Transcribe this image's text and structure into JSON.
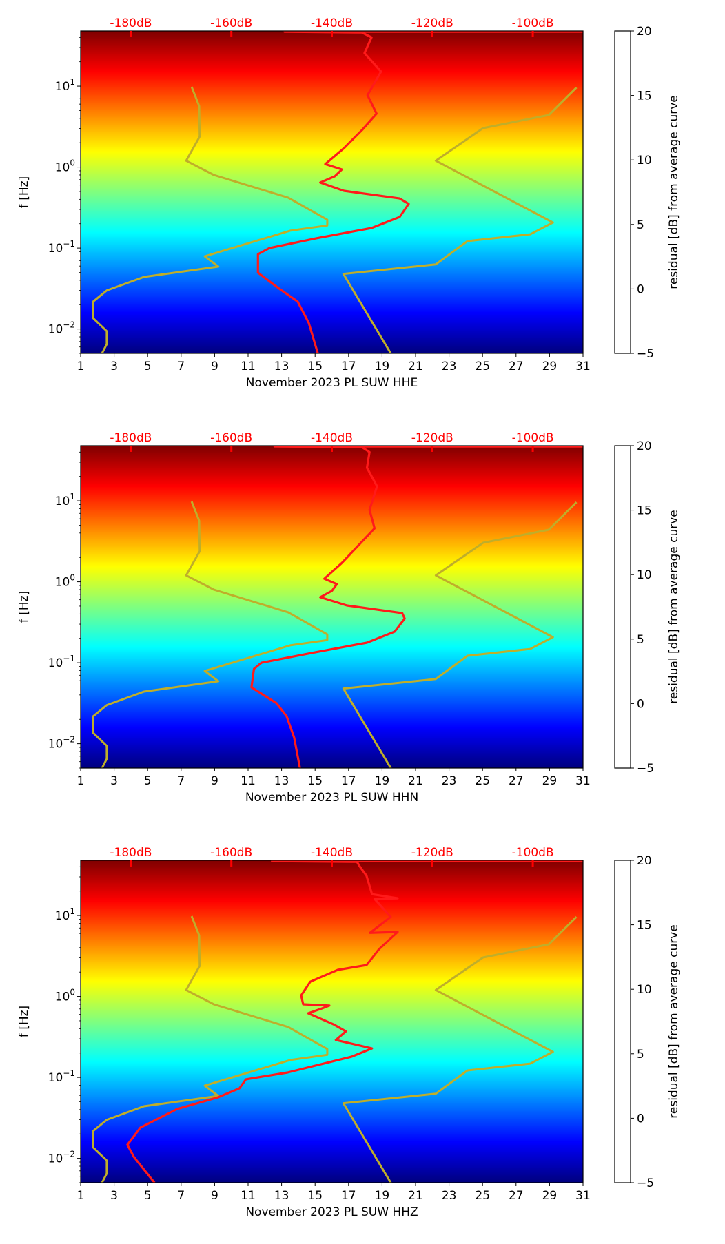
{
  "chart_data": [
    {
      "type": "heatmap",
      "title": "",
      "xlabel": "November 2023 PL SUW  HHE",
      "ylabel": "f [Hz]",
      "colorbar_label": "residual [dB] from average curve",
      "xlim": [
        1,
        31
      ],
      "ylim": [
        0.005,
        48
      ],
      "yscale": "log",
      "x_ticks": [
        "1",
        "3",
        "5",
        "7",
        "9",
        "11",
        "13",
        "15",
        "17",
        "19",
        "21",
        "23",
        "25",
        "27",
        "29",
        "31"
      ],
      "y_ticks": [
        {
          "value": 10,
          "base": "10",
          "exp": "1"
        },
        {
          "value": 1,
          "base": "10",
          "exp": "0"
        },
        {
          "value": 0.1,
          "base": "10",
          "exp": "−1"
        },
        {
          "value": 0.01,
          "base": "10",
          "exp": "−2"
        }
      ],
      "colorbar_ticks": [
        "20",
        "15",
        "10",
        "5",
        "0",
        "−5"
      ],
      "colorbar_range": [
        -5,
        20
      ],
      "colormap": "jet",
      "top_axis": {
        "ticks": [
          "-180dB",
          "-160dB",
          "-140dB",
          "-120dB",
          "-100dB"
        ],
        "values": [
          -180,
          -160,
          -140,
          -120,
          -100
        ],
        "range": [
          -190,
          -90
        ],
        "color": "#ff0000"
      },
      "series": [
        {
          "name": "NLNM",
          "color": "#bfae2a",
          "points": [
            [
              9.8,
              -167.9
            ],
            [
              5.66,
              -166.4
            ],
            [
              2.39,
              -166.3
            ],
            [
              1.2,
              -169.0
            ],
            [
              0.8,
              -163.5
            ],
            [
              0.42,
              -148.7
            ],
            [
              0.224,
              -140.9
            ],
            [
              0.19,
              -140.9
            ],
            [
              0.164,
              -148.3
            ],
            [
              0.079,
              -165.3
            ],
            [
              0.059,
              -162.6
            ],
            [
              0.044,
              -177.4
            ],
            [
              0.03,
              -184.8
            ],
            [
              0.0218,
              -187.5
            ],
            [
              0.0136,
              -187.5
            ],
            [
              0.0094,
              -184.8
            ],
            [
              0.0065,
              -184.8
            ],
            [
              0.0048,
              -185.9
            ]
          ]
        },
        {
          "name": "NHNM",
          "color": "#bfae2a",
          "points": [
            [
              9.6,
              -91.3
            ],
            [
              4.4,
              -96.8
            ],
            [
              3.03,
              -109.9
            ],
            [
              1.2,
              -119.3
            ],
            [
              0.207,
              -96.0
            ],
            [
              0.148,
              -100.5
            ],
            [
              0.122,
              -113.0
            ],
            [
              0.063,
              -119.3
            ],
            [
              0.048,
              -137.7
            ],
            [
              0.0048,
              -128.1
            ]
          ]
        },
        {
          "name": "median PSD",
          "color": "#ff1a1a",
          "points": [
            [
              47,
              -90
            ],
            [
              47,
              -149.4
            ],
            [
              46,
              -134
            ],
            [
              40,
              -132.1
            ],
            [
              25.6,
              -133.5
            ],
            [
              15.1,
              -130.2
            ],
            [
              7.74,
              -132.9
            ],
            [
              4.57,
              -131.1
            ],
            [
              2.91,
              -133.9
            ],
            [
              1.71,
              -137.6
            ],
            [
              1.09,
              -141.3
            ],
            [
              0.935,
              -138.0
            ],
            [
              0.77,
              -139.4
            ],
            [
              0.644,
              -142.3
            ],
            [
              0.509,
              -137.6
            ],
            [
              0.41,
              -126.5
            ],
            [
              0.351,
              -124.7
            ],
            [
              0.242,
              -126.5
            ],
            [
              0.177,
              -132.1
            ],
            [
              0.132,
              -143.1
            ],
            [
              0.1,
              -152.4
            ],
            [
              0.084,
              -154.7
            ],
            [
              0.0496,
              -154.7
            ],
            [
              0.0316,
              -150.5
            ],
            [
              0.0218,
              -146.8
            ],
            [
              0.0119,
              -144.6
            ],
            [
              0.0048,
              -142.7
            ]
          ]
        }
      ]
    },
    {
      "type": "heatmap",
      "title": "",
      "xlabel": "November 2023 PL SUW  HHN",
      "ylabel": "f [Hz]",
      "colorbar_label": "residual [dB] from average curve",
      "xlim": [
        1,
        31
      ],
      "ylim": [
        0.005,
        48
      ],
      "yscale": "log",
      "x_ticks": [
        "1",
        "3",
        "5",
        "7",
        "9",
        "11",
        "13",
        "15",
        "17",
        "19",
        "21",
        "23",
        "25",
        "27",
        "29",
        "31"
      ],
      "y_ticks": [
        {
          "value": 10,
          "base": "10",
          "exp": "1"
        },
        {
          "value": 1,
          "base": "10",
          "exp": "0"
        },
        {
          "value": 0.1,
          "base": "10",
          "exp": "−1"
        },
        {
          "value": 0.01,
          "base": "10",
          "exp": "−2"
        }
      ],
      "colorbar_ticks": [
        "20",
        "15",
        "10",
        "5",
        "0",
        "−5"
      ],
      "colorbar_range": [
        -5,
        20
      ],
      "colormap": "jet",
      "top_axis": {
        "ticks": [
          "-180dB",
          "-160dB",
          "-140dB",
          "-120dB",
          "-100dB"
        ],
        "values": [
          -180,
          -160,
          -140,
          -120,
          -100
        ],
        "range": [
          -190,
          -90
        ],
        "color": "#ff0000"
      },
      "series": [
        {
          "name": "NLNM",
          "color": "#bfae2a",
          "points": [
            [
              9.8,
              -167.9
            ],
            [
              5.66,
              -166.4
            ],
            [
              2.39,
              -166.3
            ],
            [
              1.2,
              -169.0
            ],
            [
              0.8,
              -163.5
            ],
            [
              0.42,
              -148.7
            ],
            [
              0.224,
              -140.9
            ],
            [
              0.19,
              -140.9
            ],
            [
              0.164,
              -148.3
            ],
            [
              0.079,
              -165.3
            ],
            [
              0.059,
              -162.6
            ],
            [
              0.044,
              -177.4
            ],
            [
              0.03,
              -184.8
            ],
            [
              0.0218,
              -187.5
            ],
            [
              0.0136,
              -187.5
            ],
            [
              0.0094,
              -184.8
            ],
            [
              0.0065,
              -184.8
            ],
            [
              0.0048,
              -185.9
            ]
          ]
        },
        {
          "name": "NHNM",
          "color": "#bfae2a",
          "points": [
            [
              9.6,
              -91.3
            ],
            [
              4.4,
              -96.8
            ],
            [
              3.03,
              -109.9
            ],
            [
              1.2,
              -119.3
            ],
            [
              0.207,
              -96.0
            ],
            [
              0.148,
              -100.5
            ],
            [
              0.122,
              -113.0
            ],
            [
              0.063,
              -119.3
            ],
            [
              0.048,
              -137.7
            ],
            [
              0.0048,
              -128.1
            ]
          ]
        },
        {
          "name": "median PSD",
          "color": "#ff1a1a",
          "points": [
            [
              47,
              -90
            ],
            [
              47,
              -151.4
            ],
            [
              46,
              -134
            ],
            [
              40,
              -132.5
            ],
            [
              25.6,
              -133.0
            ],
            [
              15.1,
              -131.0
            ],
            [
              7.74,
              -132.5
            ],
            [
              4.57,
              -131.5
            ],
            [
              2.91,
              -134.5
            ],
            [
              1.71,
              -138.0
            ],
            [
              1.09,
              -141.5
            ],
            [
              0.935,
              -139.0
            ],
            [
              0.77,
              -140.0
            ],
            [
              0.644,
              -142.3
            ],
            [
              0.509,
              -137.0
            ],
            [
              0.41,
              -126.0
            ],
            [
              0.351,
              -125.5
            ],
            [
              0.242,
              -127.5
            ],
            [
              0.177,
              -133.0
            ],
            [
              0.132,
              -144.0
            ],
            [
              0.1,
              -154.0
            ],
            [
              0.084,
              -155.5
            ],
            [
              0.0496,
              -156.0
            ],
            [
              0.0316,
              -151.0
            ],
            [
              0.0218,
              -149.0
            ],
            [
              0.0119,
              -147.5
            ],
            [
              0.0048,
              -146.3
            ]
          ]
        }
      ]
    },
    {
      "type": "heatmap",
      "title": "",
      "xlabel": "November 2023 PL SUW  HHZ",
      "ylabel": "f [Hz]",
      "colorbar_label": "residual [dB] from average curve",
      "xlim": [
        1,
        31
      ],
      "ylim": [
        0.005,
        48
      ],
      "yscale": "log",
      "x_ticks": [
        "1",
        "3",
        "5",
        "7",
        "9",
        "11",
        "13",
        "15",
        "17",
        "19",
        "21",
        "23",
        "25",
        "27",
        "29",
        "31"
      ],
      "y_ticks": [
        {
          "value": 10,
          "base": "10",
          "exp": "1"
        },
        {
          "value": 1,
          "base": "10",
          "exp": "0"
        },
        {
          "value": 0.1,
          "base": "10",
          "exp": "−1"
        },
        {
          "value": 0.01,
          "base": "10",
          "exp": "−2"
        }
      ],
      "colorbar_ticks": [
        "20",
        "15",
        "10",
        "5",
        "0",
        "−5"
      ],
      "colorbar_range": [
        -5,
        20
      ],
      "colormap": "jet",
      "top_axis": {
        "ticks": [
          "-180dB",
          "-160dB",
          "-140dB",
          "-120dB",
          "-100dB"
        ],
        "values": [
          -180,
          -160,
          -140,
          -120,
          -100
        ],
        "range": [
          -190,
          -90
        ],
        "color": "#ff0000"
      },
      "series": [
        {
          "name": "NLNM",
          "color": "#bfae2a",
          "points": [
            [
              9.8,
              -167.9
            ],
            [
              5.66,
              -166.4
            ],
            [
              2.39,
              -166.3
            ],
            [
              1.2,
              -169.0
            ],
            [
              0.8,
              -163.5
            ],
            [
              0.42,
              -148.7
            ],
            [
              0.224,
              -140.9
            ],
            [
              0.19,
              -140.9
            ],
            [
              0.164,
              -148.3
            ],
            [
              0.079,
              -165.3
            ],
            [
              0.059,
              -162.6
            ],
            [
              0.044,
              -177.4
            ],
            [
              0.03,
              -184.8
            ],
            [
              0.0218,
              -187.5
            ],
            [
              0.0136,
              -187.5
            ],
            [
              0.0094,
              -184.8
            ],
            [
              0.0065,
              -184.8
            ],
            [
              0.0048,
              -185.9
            ]
          ]
        },
        {
          "name": "NHNM",
          "color": "#bfae2a",
          "points": [
            [
              9.6,
              -91.3
            ],
            [
              4.4,
              -96.8
            ],
            [
              3.03,
              -109.9
            ],
            [
              1.2,
              -119.3
            ],
            [
              0.207,
              -96.0
            ],
            [
              0.148,
              -100.5
            ],
            [
              0.122,
              -113.0
            ],
            [
              0.063,
              -119.3
            ],
            [
              0.048,
              -137.7
            ],
            [
              0.0048,
              -128.1
            ]
          ]
        },
        {
          "name": "median PSD",
          "color": "#ff1a1a",
          "points": [
            [
              47,
              -90
            ],
            [
              47,
              -151.9
            ],
            [
              46,
              -135
            ],
            [
              40,
              -134.4
            ],
            [
              31,
              -133.1
            ],
            [
              18.3,
              -132.0
            ],
            [
              16.3,
              -126.9
            ],
            [
              16.0,
              -131.5
            ],
            [
              9.6,
              -128.3
            ],
            [
              6.1,
              -132.4
            ],
            [
              6.25,
              -126.9
            ],
            [
              3.83,
              -130.6
            ],
            [
              2.44,
              -133.1
            ],
            [
              2.13,
              -138.8
            ],
            [
              1.52,
              -144.3
            ],
            [
              1.03,
              -146.1
            ],
            [
              0.8,
              -145.7
            ],
            [
              0.77,
              -140.5
            ],
            [
              0.71,
              -142.0
            ],
            [
              0.62,
              -144.7
            ],
            [
              0.45,
              -139.6
            ],
            [
              0.37,
              -137.2
            ],
            [
              0.29,
              -139.2
            ],
            [
              0.228,
              -132.0
            ],
            [
              0.18,
              -136.1
            ],
            [
              0.115,
              -148.8
            ],
            [
              0.0946,
              -157.1
            ],
            [
              0.0733,
              -158.4
            ],
            [
              0.0569,
              -162.6
            ],
            [
              0.0407,
              -170.8
            ],
            [
              0.024,
              -178.1
            ],
            [
              0.0147,
              -180.7
            ],
            [
              0.0104,
              -179.4
            ],
            [
              0.005,
              -175.3
            ]
          ]
        }
      ]
    }
  ]
}
